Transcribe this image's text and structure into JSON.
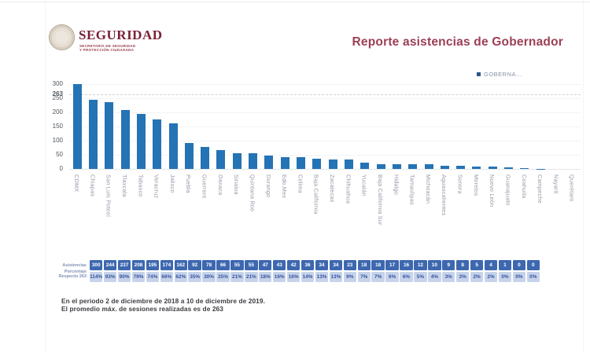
{
  "page": {
    "header": {
      "logo_brand": "SEGURIDAD",
      "logo_sub1": "SECRETARÍA DE SEGURIDAD",
      "logo_sub2": "Y PROTECCIÓN CIUDADANA",
      "title": "Reporte asistencias de Gobernador"
    },
    "legend_label": "GOBERNA...",
    "footer_line1": "En el periodo 2 de diciembre de 2018 a 10 de diciembre de 2019.",
    "footer_line2": "El promedio máx. de sesiones realizadas es de 263"
  },
  "chart_data": {
    "type": "bar",
    "title": "Reporte asistencias de Gobernador",
    "legend": [
      "GOBERNA..."
    ],
    "legend_position": "top-right",
    "categories": [
      "CDMX",
      "Chiapas",
      "San Luis Potosí",
      "Tlaxcala",
      "Tabasco",
      "Veracruz",
      "Jalisco",
      "Puebla",
      "Guerrero",
      "Oaxaca",
      "Sinaloa",
      "Quintana Roo",
      "Durango",
      "Edo.Mex",
      "Colima",
      "Baja California",
      "Zacatecas",
      "Chihuahua",
      "Yucatán",
      "Baja California Sur",
      "Hidalgo",
      "Tamaulipas",
      "Michoacán",
      "Aguascalientes",
      "Sonora",
      "Morelos",
      "Nuevo León",
      "Guanajuato",
      "Coahuila",
      "Campeche",
      "Nayarit",
      "Querétaro"
    ],
    "values": [
      300,
      244,
      237,
      208,
      195,
      174,
      162,
      92,
      78,
      66,
      55,
      55,
      47,
      43,
      42,
      36,
      34,
      34,
      23,
      18,
      18,
      17,
      16,
      12,
      10,
      9,
      8,
      5,
      4,
      1,
      0,
      0
    ],
    "ylim": [
      0,
      300
    ],
    "yticks": [
      0,
      50,
      100,
      150,
      200,
      250,
      300
    ],
    "reference_line": {
      "value": 263,
      "label": "263",
      "style": "dashed"
    },
    "bar_color": "#2473b5",
    "grid": true
  },
  "table": {
    "row_label_asistencias": "Asistencias",
    "row_label_porcentaje": "Porcentaje Respecto 263",
    "porcentajes": [
      "114%",
      "93%",
      "90%",
      "79%",
      "74%",
      "66%",
      "62%",
      "35%",
      "30%",
      "25%",
      "21%",
      "21%",
      "18%",
      "16%",
      "16%",
      "14%",
      "13%",
      "13%",
      "9%",
      "7%",
      "7%",
      "6%",
      "6%",
      "5%",
      "4%",
      "3%",
      "3%",
      "2%",
      "2%",
      "0%",
      "0%",
      "0%"
    ]
  },
  "colors": {
    "accent_maroon": "#9c3e55",
    "bar_blue": "#2473b5",
    "table_header_bg": "#3d68b0",
    "table_light_bg": "#c7d3ea"
  }
}
